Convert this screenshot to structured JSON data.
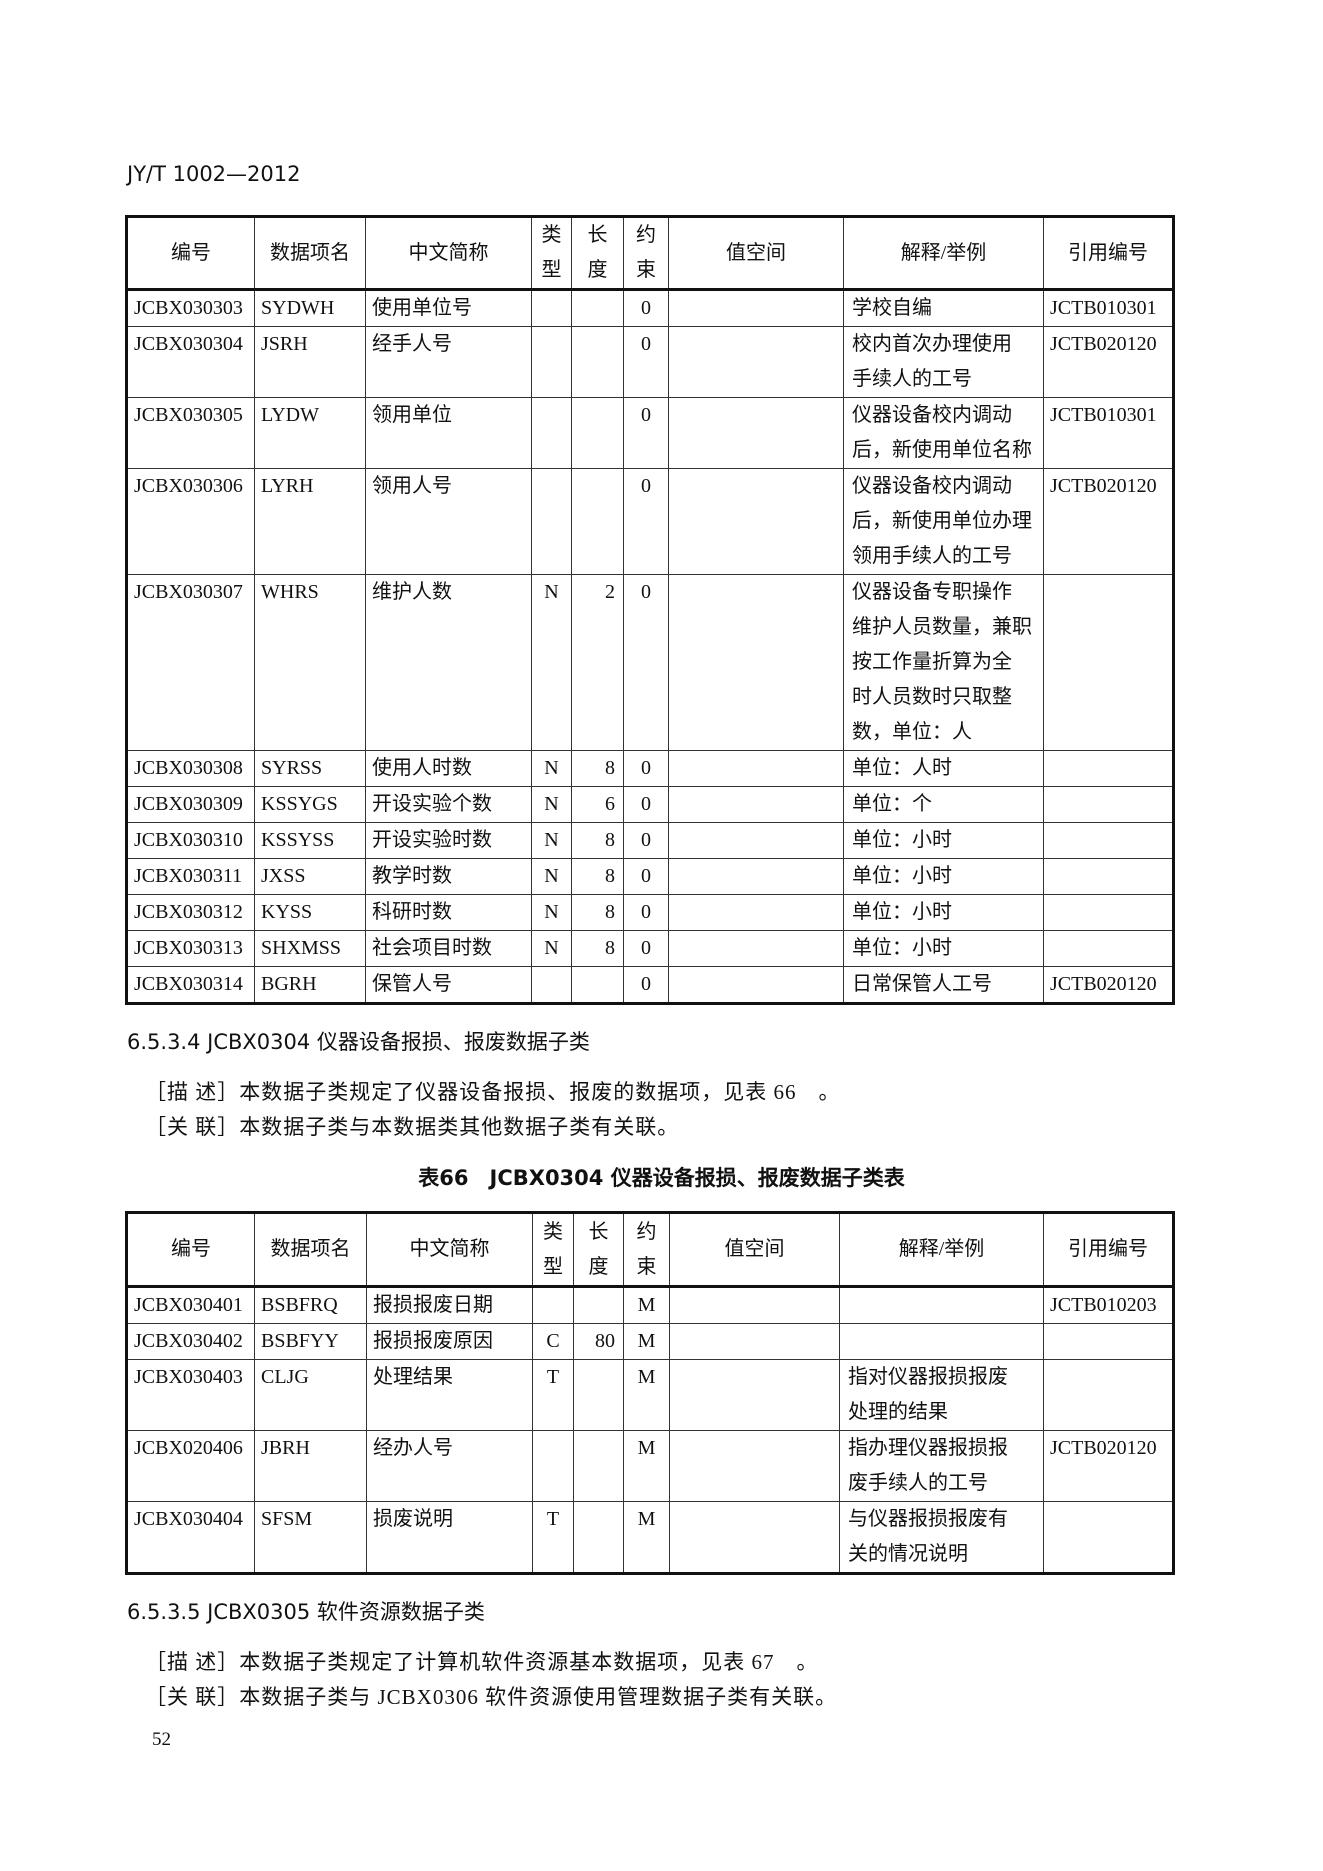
{
  "header": {
    "doc_code": "JY/T 1002—2012"
  },
  "columns": [
    "编号",
    "数据项名",
    "中文简称",
    "类\n型",
    "长\n度",
    "约\n束",
    "值空间",
    "解释/举例",
    "引用编号"
  ],
  "table1": {
    "rows": [
      [
        "JCBX030303",
        "SYDWH",
        "使用单位号",
        "",
        "",
        "0",
        "",
        "学校自编",
        "JCTB010301"
      ],
      [
        "JCBX030304",
        "JSRH",
        "经手人号",
        "",
        "",
        "0",
        "",
        "校内首次办理使用\n手续人的工号",
        "JCTB020120"
      ],
      [
        "JCBX030305",
        "LYDW",
        "领用单位",
        "",
        "",
        "0",
        "",
        "仪器设备校内调动\n后，新使用单位名称",
        "JCTB010301"
      ],
      [
        "JCBX030306",
        "LYRH",
        "领用人号",
        "",
        "",
        "0",
        "",
        "仪器设备校内调动\n后，新使用单位办理\n领用手续人的工号",
        "JCTB020120"
      ],
      [
        "JCBX030307",
        "WHRS",
        "维护人数",
        "N",
        "2",
        "0",
        "",
        "仪器设备专职操作\n维护人员数量，兼职\n按工作量折算为全\n时人员数时只取整\n数，单位：人",
        ""
      ],
      [
        "JCBX030308",
        "SYRSS",
        "使用人时数",
        "N",
        "8",
        "0",
        "",
        "单位：人时",
        ""
      ],
      [
        "JCBX030309",
        "KSSYGS",
        "开设实验个数",
        "N",
        "6",
        "0",
        "",
        "单位：个",
        ""
      ],
      [
        "JCBX030310",
        "KSSYSS",
        "开设实验时数",
        "N",
        "8",
        "0",
        "",
        "单位：小时",
        ""
      ],
      [
        "JCBX030311",
        "JXSS",
        "教学时数",
        "N",
        "8",
        "0",
        "",
        "单位：小时",
        ""
      ],
      [
        "JCBX030312",
        "KYSS",
        "科研时数",
        "N",
        "8",
        "0",
        "",
        "单位：小时",
        ""
      ],
      [
        "JCBX030313",
        "SHXMSS",
        "社会项目时数",
        "N",
        "8",
        "0",
        "",
        "单位：小时",
        ""
      ],
      [
        "JCBX030314",
        "BGRH",
        "保管人号",
        "",
        "",
        "0",
        "",
        "日常保管人工号",
        "JCTB020120"
      ]
    ]
  },
  "section_6534": {
    "heading": "6.5.3.4  JCBX0304 仪器设备报损、报废数据子类",
    "describe": "［描 述］本数据子类规定了仪器设备报损、报废的数据项，见表 66　。",
    "relation": "［关 联］本数据子类与本数据类其他数据子类有关联。"
  },
  "table66": {
    "caption": "表66　JCBX0304 仪器设备报损、报废数据子类表",
    "rows": [
      [
        "JCBX030401",
        "BSBFRQ",
        "报损报废日期",
        "",
        "",
        "M",
        "",
        "",
        "JCTB010203"
      ],
      [
        "JCBX030402",
        "BSBFYY",
        "报损报废原因",
        "C",
        "80",
        "M",
        "",
        "",
        ""
      ],
      [
        "JCBX030403",
        "CLJG",
        "处理结果",
        "T",
        "",
        "M",
        "",
        "指对仪器报损报废\n处理的结果",
        ""
      ],
      [
        "JCBX020406",
        "JBRH",
        "经办人号",
        "",
        "",
        "M",
        "",
        "指办理仪器报损报\n废手续人的工号",
        "JCTB020120"
      ],
      [
        "JCBX030404",
        "SFSM",
        "损废说明",
        "T",
        "",
        "M",
        "",
        "与仪器报损报废有\n关的情况说明",
        ""
      ]
    ]
  },
  "section_6535": {
    "heading": "6.5.3.5  JCBX0305 软件资源数据子类",
    "describe": "［描 述］本数据子类规定了计算机软件资源基本数据项，见表 67　。",
    "relation": "［关 联］本数据子类与 JCBX0306 软件资源使用管理数据子类有关联。"
  },
  "footer": {
    "page_number": "52"
  }
}
